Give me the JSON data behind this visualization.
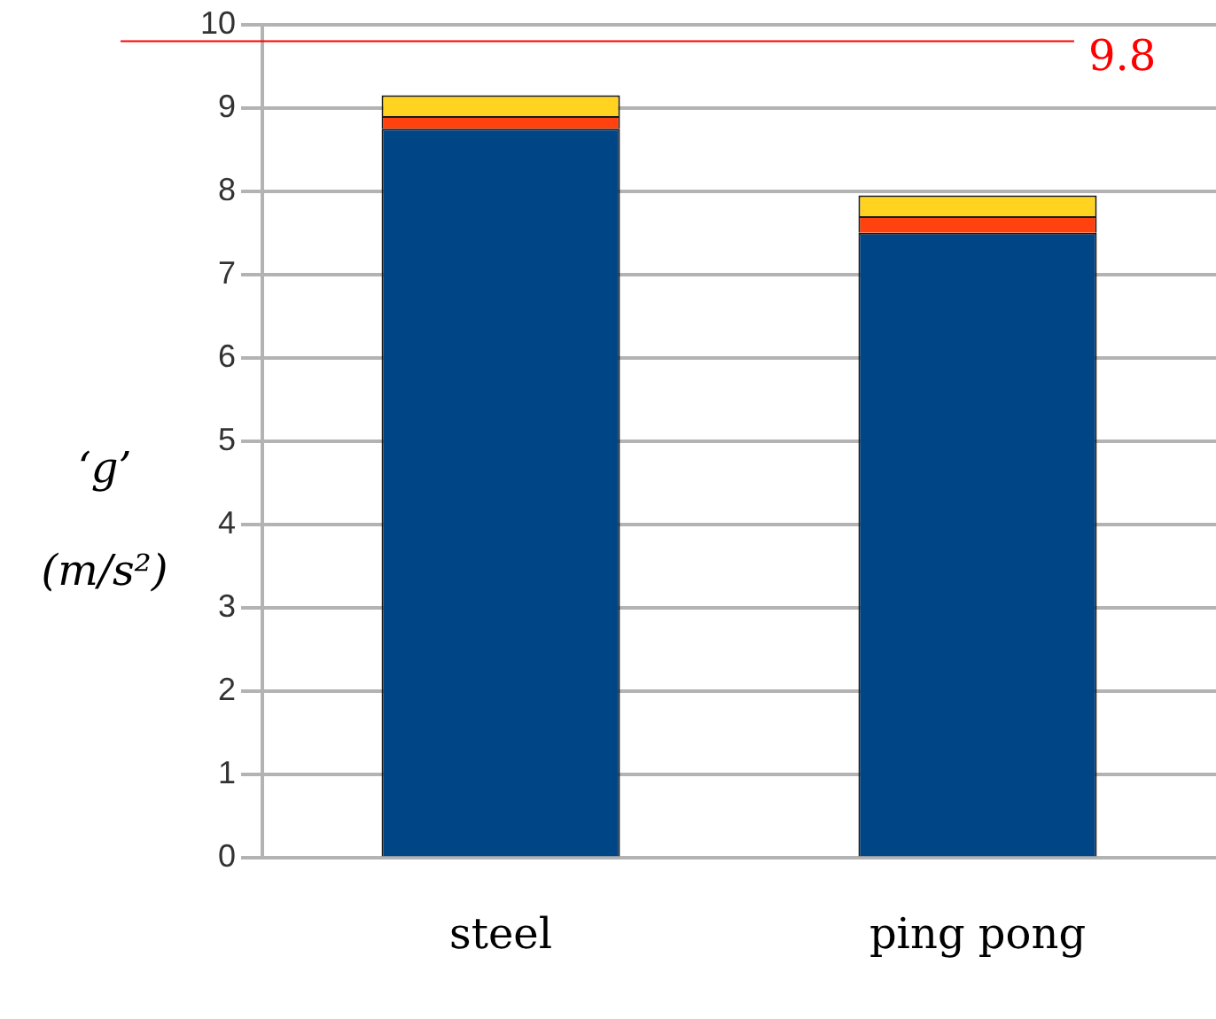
{
  "chart_data": {
    "type": "bar",
    "stacked": true,
    "ylabel": "‘g’ (m/s²)",
    "categories": [
      "steel",
      "ping pong"
    ],
    "series": [
      {
        "color": "#004586",
        "values": [
          8.75,
          7.5
        ]
      },
      {
        "color": "#ff420e",
        "values": [
          0.15,
          0.2
        ]
      },
      {
        "color": "#ffd320",
        "values": [
          0.25,
          0.25
        ]
      }
    ],
    "ylim": [
      0,
      10
    ],
    "yticks": [
      0,
      1,
      2,
      3,
      4,
      5,
      6,
      7,
      8,
      9,
      10
    ],
    "grid": "y",
    "legend": false,
    "ref_lines": [
      {
        "axis": "y",
        "value": 9.8,
        "label": "9.8",
        "color": "#ff0000"
      }
    ]
  }
}
